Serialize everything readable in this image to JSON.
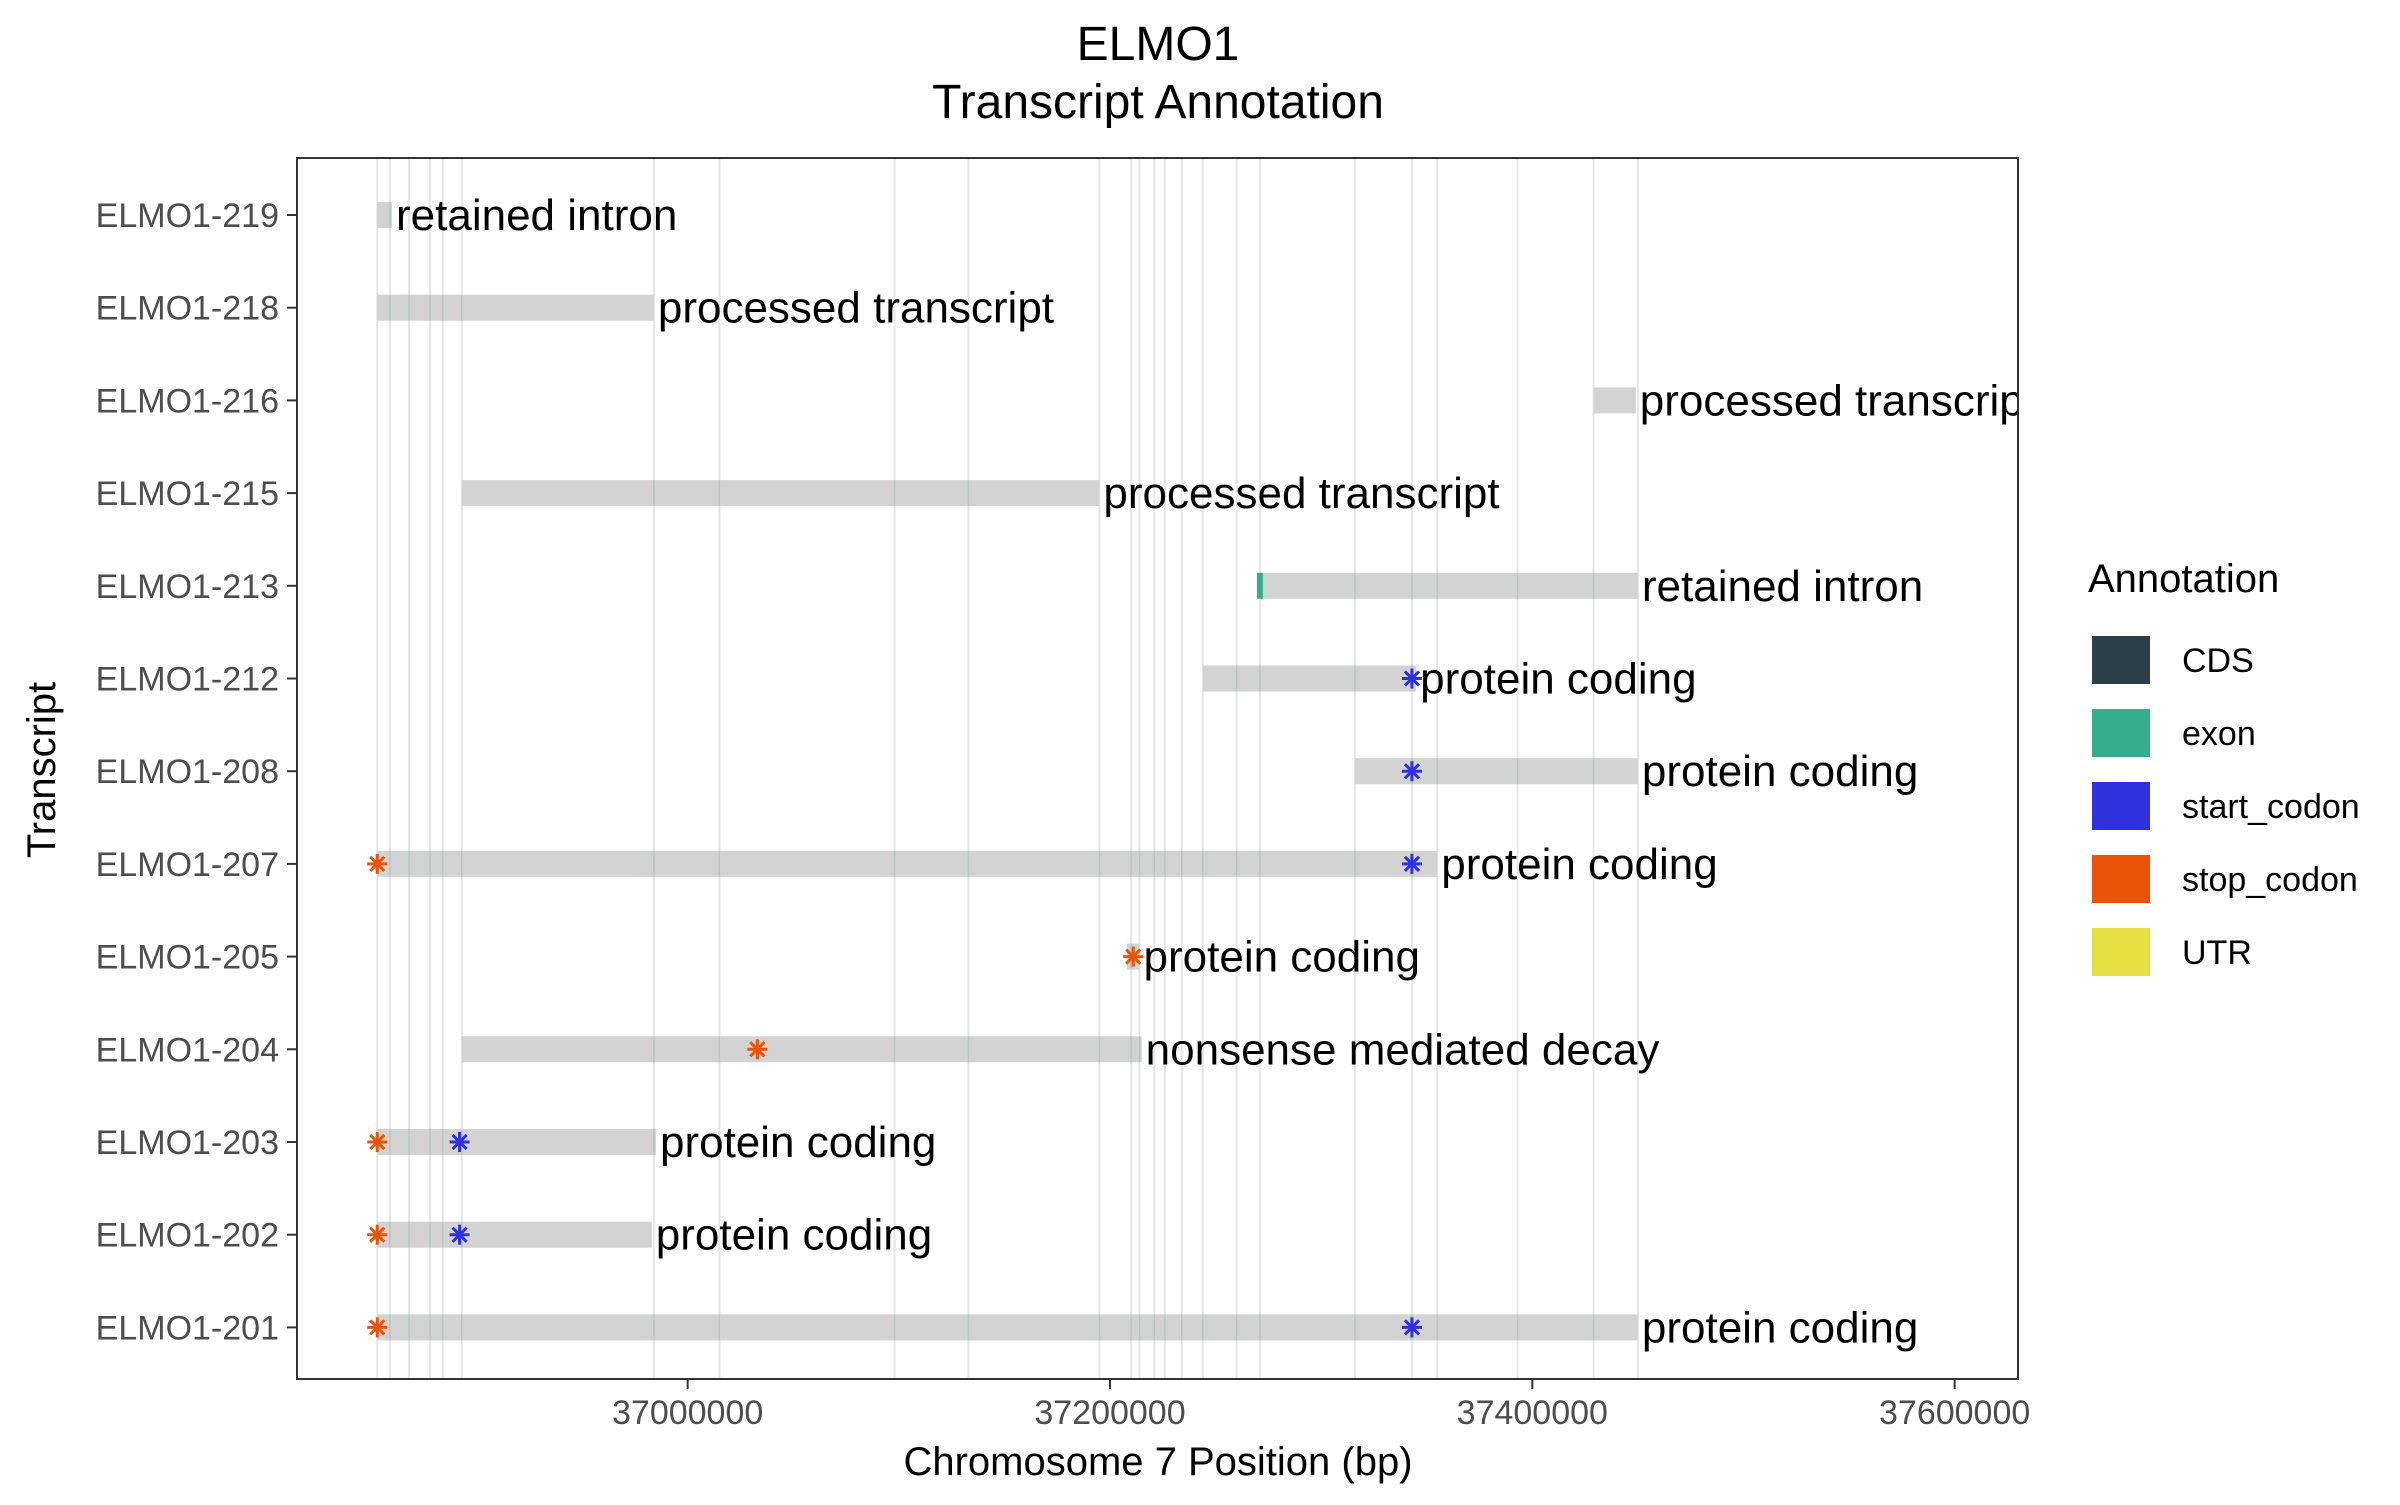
{
  "chart_data": {
    "type": "gantt",
    "title": "ELMO1",
    "subtitle": "Transcript Annotation",
    "xlabel": "Chromosome 7 Position (bp)",
    "ylabel": "Transcript",
    "xlim": [
      36815000,
      37630000
    ],
    "xticks": [
      37000000,
      37200000,
      37400000,
      37600000
    ],
    "grid": "vertical lines at exon boundaries",
    "legend": {
      "title": "Annotation",
      "position": "right",
      "entries": [
        {
          "label": "CDS",
          "color": "#2c3e47"
        },
        {
          "label": "exon",
          "color": "#35ad8e"
        },
        {
          "label": "start_codon",
          "color": "#2e31dd"
        },
        {
          "label": "stop_codon",
          "color": "#ea5408"
        },
        {
          "label": "UTR",
          "color": "#e7e045"
        }
      ]
    },
    "transcripts": [
      {
        "name": "ELMO1-219",
        "start": 36853000,
        "end": 36860000,
        "label": "retained intron",
        "starts": [],
        "stops": []
      },
      {
        "name": "ELMO1-218",
        "start": 36853000,
        "end": 36984000,
        "label": "processed transcript",
        "starts": [],
        "stops": []
      },
      {
        "name": "ELMO1-216",
        "start": 37429000,
        "end": 37449000,
        "label": "processed transcript",
        "starts": [],
        "stops": []
      },
      {
        "name": "ELMO1-215",
        "start": 36893000,
        "end": 37195000,
        "label": "processed transcript",
        "starts": [],
        "stops": []
      },
      {
        "name": "ELMO1-213",
        "start": 37270000,
        "end": 37450000,
        "label": "retained intron",
        "exon_mark": 37271000,
        "starts": [],
        "stops": []
      },
      {
        "name": "ELMO1-212",
        "start": 37244000,
        "end": 37345000,
        "label": "protein coding",
        "starts": [
          37343000
        ],
        "stops": []
      },
      {
        "name": "ELMO1-208",
        "start": 37316000,
        "end": 37450000,
        "label": "protein coding",
        "starts": [
          37343000
        ],
        "stops": []
      },
      {
        "name": "ELMO1-207",
        "start": 36853000,
        "end": 37355000,
        "label": "protein coding",
        "starts": [
          37343000
        ],
        "stops": [
          36853000
        ]
      },
      {
        "name": "ELMO1-205",
        "start": 37208000,
        "end": 37214000,
        "label": "protein coding",
        "starts": [],
        "stops": [
          37211000
        ]
      },
      {
        "name": "ELMO1-204",
        "start": 36893000,
        "end": 37215000,
        "label": "nonsense mediated decay",
        "starts": [],
        "stops": [
          37033000
        ]
      },
      {
        "name": "ELMO1-203",
        "start": 36853000,
        "end": 36985000,
        "label": "protein coding",
        "starts": [
          36892000
        ],
        "stops": [
          36853000
        ]
      },
      {
        "name": "ELMO1-202",
        "start": 36853000,
        "end": 36983000,
        "label": "protein coding",
        "starts": [
          36892000
        ],
        "stops": [
          36853000
        ]
      },
      {
        "name": "ELMO1-201",
        "start": 36853000,
        "end": 37450000,
        "label": "protein coding",
        "starts": [
          37343000
        ],
        "stops": [
          36853000
        ]
      }
    ],
    "exon_boundaries": [
      36853000,
      36859000,
      36868000,
      36878000,
      36884000,
      36893000,
      36984000,
      37015000,
      37098000,
      37133000,
      37195000,
      37210000,
      37214000,
      37221000,
      37226000,
      37234000,
      37244000,
      37260000,
      37271000,
      37316000,
      37343000,
      37355000,
      37393000,
      37429000,
      37450000
    ]
  }
}
